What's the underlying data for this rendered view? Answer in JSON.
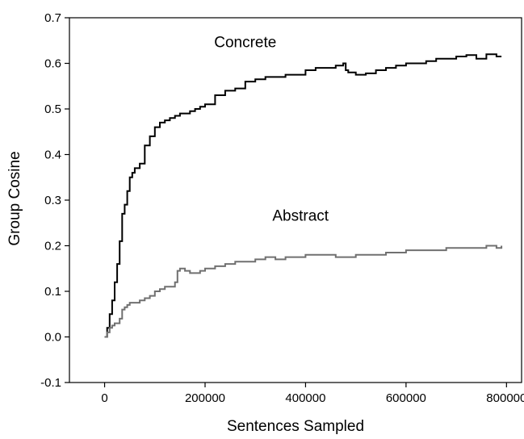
{
  "chart_data": {
    "type": "line",
    "title": "",
    "xlabel": "Sentences Sampled",
    "ylabel": "Group Cosine",
    "xlim": [
      -70000,
      830000
    ],
    "ylim": [
      -0.1,
      0.7
    ],
    "x_ticks": [
      0,
      200000,
      400000,
      600000,
      800000
    ],
    "x_tick_labels": [
      "0",
      "200000",
      "400000",
      "600000",
      "800000"
    ],
    "y_ticks": [
      -0.1,
      0.0,
      0.1,
      0.2,
      0.3,
      0.4,
      0.5,
      0.6,
      0.7
    ],
    "y_tick_labels": [
      "-0.1",
      "0.0",
      "0.1",
      "0.2",
      "0.3",
      "0.4",
      "0.5",
      "0.6",
      "0.7"
    ],
    "grid": false,
    "legend": "none",
    "series": [
      {
        "name": "Concrete",
        "color": "#000000",
        "x": [
          0,
          5000,
          10000,
          15000,
          20000,
          25000,
          30000,
          35000,
          40000,
          45000,
          50000,
          55000,
          60000,
          70000,
          80000,
          90000,
          100000,
          110000,
          120000,
          130000,
          140000,
          150000,
          160000,
          170000,
          180000,
          190000,
          200000,
          220000,
          240000,
          260000,
          280000,
          300000,
          320000,
          340000,
          360000,
          380000,
          400000,
          420000,
          440000,
          460000,
          475000,
          480000,
          485000,
          500000,
          520000,
          540000,
          560000,
          580000,
          600000,
          620000,
          640000,
          660000,
          680000,
          700000,
          720000,
          740000,
          760000,
          780000,
          790000
        ],
        "y": [
          0.0,
          0.02,
          0.05,
          0.08,
          0.12,
          0.16,
          0.21,
          0.27,
          0.29,
          0.32,
          0.35,
          0.36,
          0.37,
          0.38,
          0.42,
          0.44,
          0.46,
          0.47,
          0.475,
          0.48,
          0.485,
          0.49,
          0.49,
          0.495,
          0.5,
          0.505,
          0.51,
          0.53,
          0.54,
          0.545,
          0.56,
          0.565,
          0.57,
          0.57,
          0.575,
          0.575,
          0.585,
          0.59,
          0.59,
          0.595,
          0.6,
          0.585,
          0.58,
          0.575,
          0.578,
          0.585,
          0.59,
          0.595,
          0.6,
          0.6,
          0.605,
          0.61,
          0.61,
          0.615,
          0.618,
          0.61,
          0.62,
          0.615,
          0.615
        ]
      },
      {
        "name": "Abstract",
        "color": "#707070",
        "x": [
          0,
          5000,
          10000,
          15000,
          20000,
          25000,
          30000,
          35000,
          40000,
          45000,
          50000,
          60000,
          70000,
          80000,
          90000,
          100000,
          110000,
          120000,
          130000,
          140000,
          145000,
          150000,
          160000,
          170000,
          180000,
          190000,
          200000,
          220000,
          240000,
          260000,
          280000,
          300000,
          320000,
          340000,
          360000,
          380000,
          400000,
          420000,
          440000,
          460000,
          480000,
          500000,
          520000,
          540000,
          560000,
          580000,
          600000,
          620000,
          640000,
          660000,
          680000,
          700000,
          720000,
          740000,
          760000,
          780000,
          790000
        ],
        "y": [
          0.0,
          0.01,
          0.02,
          0.025,
          0.03,
          0.03,
          0.04,
          0.06,
          0.065,
          0.07,
          0.075,
          0.075,
          0.08,
          0.085,
          0.09,
          0.1,
          0.105,
          0.11,
          0.11,
          0.12,
          0.145,
          0.15,
          0.145,
          0.14,
          0.14,
          0.145,
          0.15,
          0.155,
          0.16,
          0.165,
          0.165,
          0.17,
          0.175,
          0.17,
          0.175,
          0.175,
          0.18,
          0.18,
          0.18,
          0.175,
          0.175,
          0.18,
          0.18,
          0.18,
          0.185,
          0.185,
          0.19,
          0.19,
          0.19,
          0.19,
          0.195,
          0.195,
          0.195,
          0.195,
          0.2,
          0.195,
          0.2
        ]
      }
    ]
  }
}
